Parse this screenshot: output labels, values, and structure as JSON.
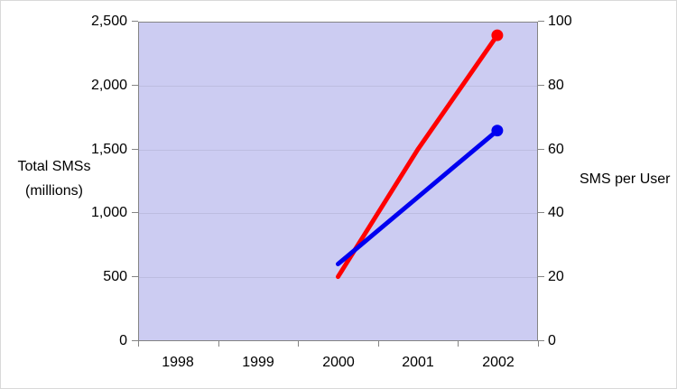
{
  "window": {
    "background": "#ffffff",
    "border_color": "#d9d9d9"
  },
  "chart_data": {
    "type": "line",
    "categories": [
      "1998",
      "1999",
      "2000",
      "2001",
      "2002"
    ],
    "series": [
      {
        "name": "Total SMSs (millions)",
        "axis": "left",
        "color": "#ff0000",
        "x": [
          "2000",
          "2001",
          "2002"
        ],
        "values": [
          500,
          1500,
          2400
        ],
        "end_marker": true
      },
      {
        "name": "SMS per User",
        "axis": "right",
        "color": "#0000f0",
        "x": [
          "2000",
          "2001",
          "2002"
        ],
        "values": [
          24,
          45,
          66
        ],
        "end_marker": true
      }
    ],
    "left_axis": {
      "title_line1": "Total SMSs",
      "title_line2": "(millions)",
      "min": 0,
      "max": 2500,
      "ticks": [
        "2,500",
        "2,000",
        "1,500",
        "1,000",
        "500",
        "0"
      ]
    },
    "right_axis": {
      "title": "SMS per User",
      "min": 0,
      "max": 100,
      "ticks": [
        "100",
        "80",
        "60",
        "40",
        "20",
        "0"
      ]
    },
    "x_axis": {
      "ticks": [
        "1998",
        "1999",
        "2000",
        "2001",
        "2002"
      ]
    },
    "plot": {
      "background": "#ccccf2",
      "gridline_color": "#bdbde0",
      "axis_color": "#848484",
      "grid": "horizontal",
      "legend": "none"
    }
  }
}
